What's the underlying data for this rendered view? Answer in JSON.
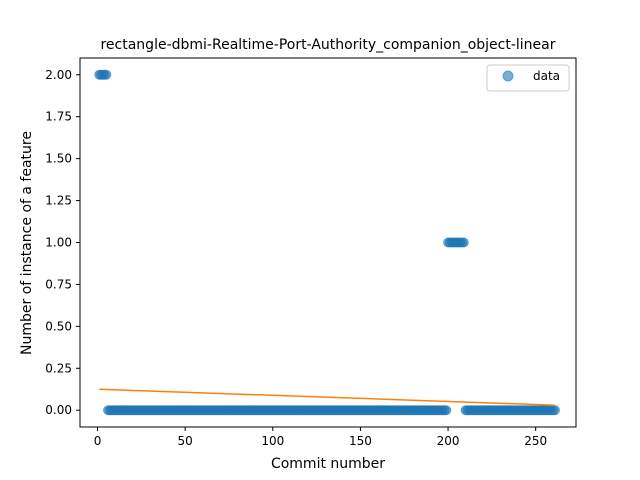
{
  "chart_data": {
    "type": "scatter",
    "title": "rectangle-dbmi-Realtime-Port-Authority_companion_object-linear",
    "xlabel": "Commit number",
    "ylabel": "Number of instance of a feature",
    "xlim": [
      -10,
      273
    ],
    "ylim": [
      -0.1,
      2.1
    ],
    "x_ticks": [
      0,
      50,
      100,
      150,
      200,
      250
    ],
    "y_ticks": [
      0.0,
      0.25,
      0.5,
      0.75,
      1.0,
      1.25,
      1.5,
      1.75,
      2.0
    ],
    "x_tick_labels": [
      "0",
      "50",
      "100",
      "150",
      "200",
      "250"
    ],
    "y_tick_labels": [
      "0.00",
      "0.25",
      "0.50",
      "0.75",
      "1.00",
      "1.25",
      "1.50",
      "1.75",
      "2.00"
    ],
    "grid": false,
    "legend": {
      "position": "top-right",
      "entries": [
        "data"
      ]
    },
    "series": [
      {
        "name": "data",
        "kind": "scatter",
        "color": "#1f77b4",
        "segments": [
          {
            "x_start": 1,
            "x_end": 5,
            "y": 2
          },
          {
            "x_start": 6,
            "x_end": 199,
            "y": 0
          },
          {
            "x_start": 200,
            "x_end": 209,
            "y": 1
          },
          {
            "x_start": 210,
            "x_end": 261,
            "y": 0
          }
        ]
      },
      {
        "kind": "line",
        "color": "#ff7f0e",
        "x": [
          1,
          261
        ],
        "y": [
          0.125,
          0.03
        ]
      }
    ]
  }
}
